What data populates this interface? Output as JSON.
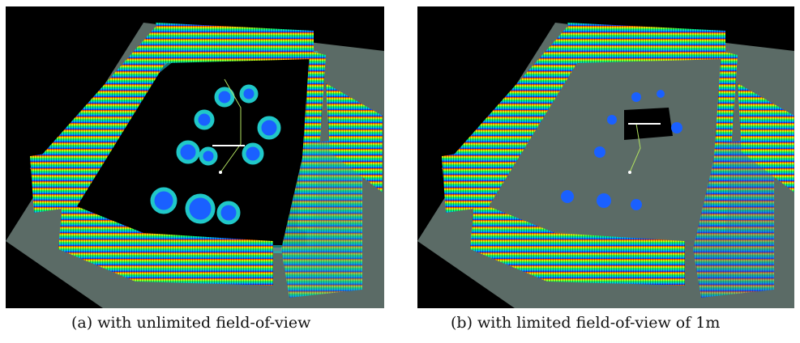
{
  "figures": [
    {
      "id": "a",
      "caption": "(a) with unlimited field-of-view",
      "inflation_halo": true
    },
    {
      "id": "b",
      "caption": "(b) with limited field-of-view of 1m",
      "inflation_halo": false
    }
  ],
  "colors": {
    "background": "#000000",
    "floor": "#5b6b66",
    "inflation_cyan": "#20c8c8",
    "inflation_red": "#c8242c",
    "height_gradient": [
      "#1a1aff",
      "#00c8ff",
      "#00ff60",
      "#ffff00",
      "#ff2000"
    ]
  }
}
